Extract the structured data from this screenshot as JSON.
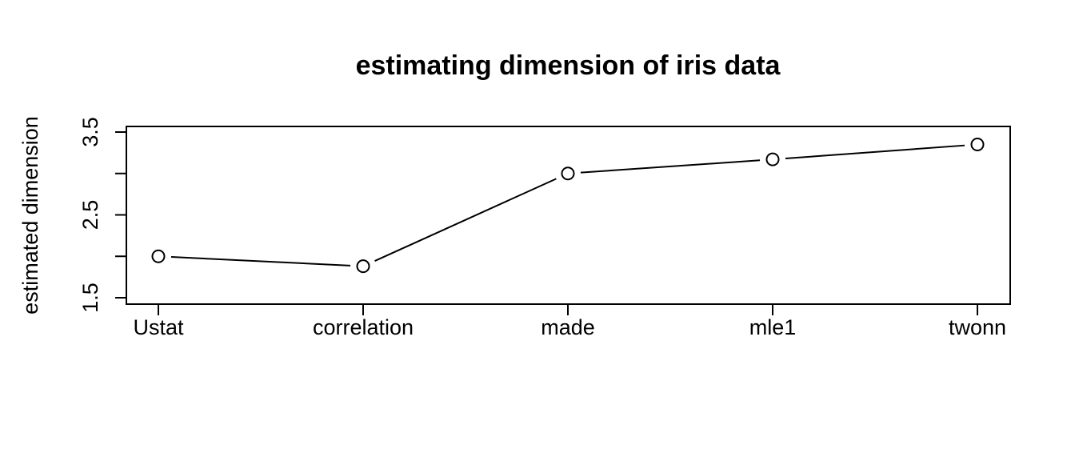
{
  "chart_data": {
    "type": "line",
    "title": "estimating dimension of iris data",
    "xlabel": "",
    "ylabel": "estimated dimension",
    "categories": [
      "Ustat",
      "correlation",
      "made",
      "mle1",
      "twonn"
    ],
    "values": [
      2.0,
      1.88,
      3.0,
      3.17,
      3.35
    ],
    "ylim": [
      1.5,
      3.5
    ],
    "yticks": [
      1.5,
      2.0,
      2.5,
      3.0,
      3.5
    ],
    "ytick_labels": [
      "1.5",
      "",
      "2.5",
      "",
      "3.5"
    ],
    "markers": "open-circle",
    "grid": false
  }
}
